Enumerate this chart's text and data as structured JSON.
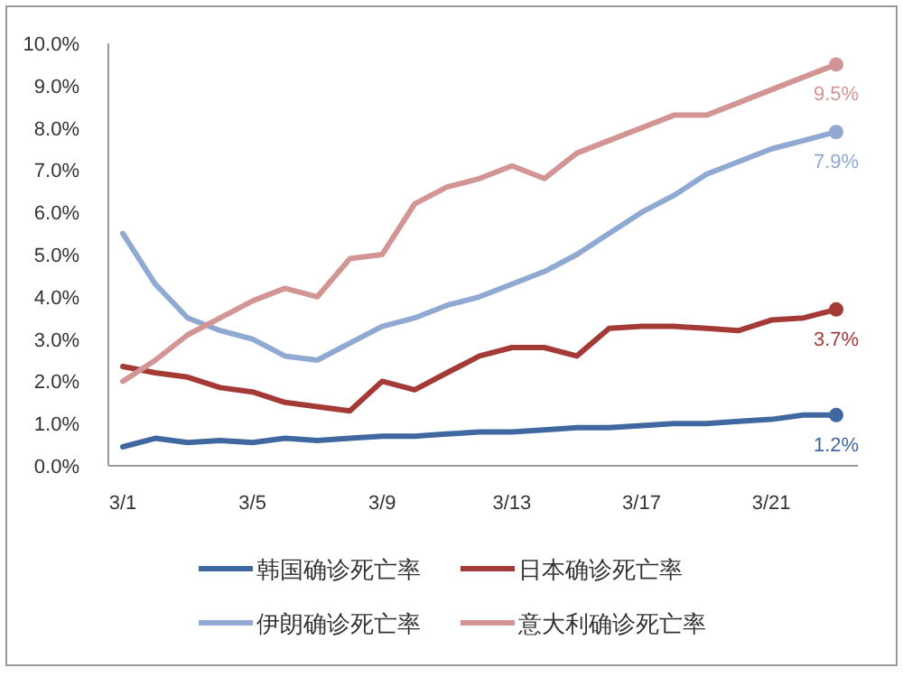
{
  "chart_data": {
    "type": "line",
    "categories": [
      "3/1",
      null,
      null,
      null,
      "3/5",
      null,
      null,
      null,
      "3/9",
      null,
      null,
      null,
      "3/13",
      null,
      null,
      null,
      "3/17",
      null,
      null,
      null,
      "3/21",
      null,
      null
    ],
    "series": [
      {
        "name": "韩国确诊死亡率",
        "color": "#3f67a0",
        "values": [
          0.45,
          0.65,
          0.55,
          0.6,
          0.55,
          0.65,
          0.6,
          0.65,
          0.7,
          0.7,
          0.75,
          0.8,
          0.8,
          0.85,
          0.9,
          0.9,
          0.95,
          1.0,
          1.0,
          1.05,
          1.1,
          1.2,
          1.2
        ],
        "value_labels": [
          null,
          null,
          null,
          null,
          null,
          null,
          null,
          null,
          null,
          null,
          null,
          null,
          null,
          null,
          null,
          null,
          null,
          null,
          null,
          null,
          null,
          null,
          "1.2%"
        ]
      },
      {
        "name": "日本确诊死亡率",
        "color": "#a33a36",
        "values": [
          2.35,
          2.2,
          2.1,
          1.85,
          1.75,
          1.5,
          1.4,
          1.3,
          2.0,
          1.8,
          2.2,
          2.6,
          2.8,
          2.8,
          2.6,
          3.25,
          3.3,
          3.3,
          3.25,
          3.2,
          3.45,
          3.5,
          3.7
        ],
        "value_labels": [
          null,
          null,
          null,
          null,
          null,
          null,
          null,
          null,
          null,
          null,
          null,
          null,
          null,
          null,
          null,
          null,
          null,
          null,
          null,
          null,
          null,
          null,
          "3.7%"
        ]
      },
      {
        "name": "伊朗确诊死亡率",
        "color": "#8fa9d2",
        "values": [
          5.5,
          4.3,
          3.5,
          3.2,
          3.0,
          2.6,
          2.5,
          2.9,
          3.3,
          3.5,
          3.8,
          4.0,
          4.3,
          4.6,
          5.0,
          5.5,
          6.0,
          6.4,
          6.9,
          7.2,
          7.5,
          7.7,
          7.9
        ],
        "value_labels": [
          null,
          null,
          null,
          null,
          null,
          null,
          null,
          null,
          null,
          null,
          null,
          null,
          null,
          null,
          null,
          null,
          null,
          null,
          null,
          null,
          null,
          null,
          "7.9%"
        ]
      },
      {
        "name": "意大利确诊死亡率",
        "color": "#d39593",
        "values": [
          2.0,
          2.5,
          3.1,
          3.5,
          3.9,
          4.2,
          4.0,
          4.9,
          5.0,
          6.2,
          6.6,
          6.8,
          7.1,
          6.8,
          7.4,
          7.7,
          8.0,
          8.3,
          8.3,
          8.6,
          8.9,
          9.2,
          9.5
        ],
        "value_labels": [
          null,
          null,
          null,
          null,
          null,
          null,
          null,
          null,
          null,
          null,
          null,
          null,
          null,
          null,
          null,
          null,
          null,
          null,
          null,
          null,
          null,
          null,
          "9.5%"
        ]
      }
    ],
    "ylim": [
      0,
      10
    ],
    "yticks": [
      {
        "value": 0,
        "label": "0.0%"
      },
      {
        "value": 1,
        "label": "1.0%"
      },
      {
        "value": 2,
        "label": "2.0%"
      },
      {
        "value": 3,
        "label": "3.0%"
      },
      {
        "value": 4,
        "label": "4.0%"
      },
      {
        "value": 5,
        "label": "5.0%"
      },
      {
        "value": 6,
        "label": "6.0%"
      },
      {
        "value": 7,
        "label": "7.0%"
      },
      {
        "value": 8,
        "label": "8.0%"
      },
      {
        "value": 9,
        "label": "9.0%"
      },
      {
        "value": 10,
        "label": "10.0%"
      }
    ],
    "grid": false,
    "legend": "bottom",
    "line_style": "solid"
  }
}
